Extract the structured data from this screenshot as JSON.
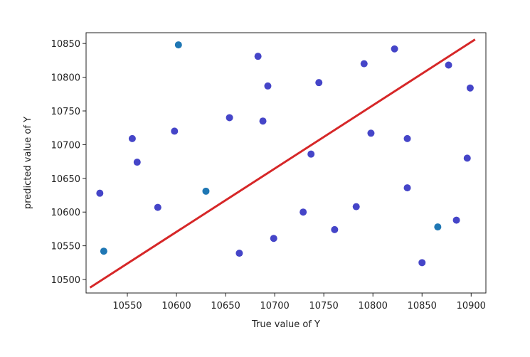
{
  "chart_data": {
    "type": "scatter",
    "x_label": "True value of Y",
    "y_label": "predicted value of Y",
    "xlim": [
      10508,
      10915
    ],
    "ylim": [
      10480,
      10866
    ],
    "xticks": [
      10550,
      10600,
      10650,
      10700,
      10750,
      10800,
      10850,
      10900
    ],
    "yticks": [
      10500,
      10550,
      10600,
      10650,
      10700,
      10750,
      10800,
      10850
    ],
    "grid": false,
    "series": [
      {
        "color": "#4545c8",
        "x": [
          10522,
          10555,
          10560,
          10581,
          10598,
          10654,
          10683,
          10688,
          10693,
          10699,
          10664,
          10729,
          10737,
          10745,
          10761,
          10783,
          10791,
          10798,
          10822,
          10835,
          10835,
          10850,
          10877,
          10885,
          10896,
          10899
        ],
        "values": [
          10628,
          10709,
          10674,
          10607,
          10720,
          10740,
          10831,
          10735,
          10787,
          10561,
          10539,
          10600,
          10686,
          10792,
          10574,
          10608,
          10820,
          10717,
          10842,
          10709,
          10636,
          10525,
          10818,
          10588,
          10680,
          10784
        ]
      },
      {
        "color": "#1f77b4",
        "x": [
          10602,
          10630,
          10526,
          10866
        ],
        "values": [
          10848,
          10631,
          10542,
          10578
        ]
      },
      {
        "type": "line",
        "color": "#d62728",
        "x": [
          10512,
          10904
        ],
        "values": [
          10488,
          10856
        ]
      }
    ]
  }
}
